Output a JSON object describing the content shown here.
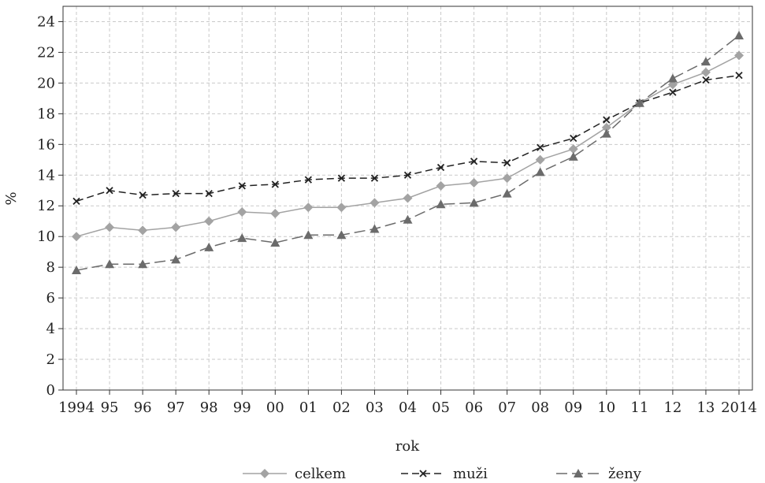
{
  "chart_data": {
    "type": "line",
    "title": "",
    "xlabel": "rok",
    "ylabel": "%",
    "ylim": [
      0,
      25
    ],
    "yticks": [
      0,
      2,
      4,
      6,
      8,
      10,
      12,
      14,
      16,
      18,
      20,
      22,
      24
    ],
    "grid": true,
    "legend_placement": "bottom",
    "categories": [
      "1994",
      "95",
      "96",
      "97",
      "98",
      "99",
      "00",
      "01",
      "02",
      "03",
      "04",
      "05",
      "06",
      "07",
      "08",
      "09",
      "10",
      "11",
      "12",
      "13",
      "2014"
    ],
    "series": [
      {
        "name": "celkem",
        "marker": "diamond",
        "line": "solid",
        "color": "#a3a3a3",
        "values": [
          10.0,
          10.6,
          10.4,
          10.6,
          11.0,
          11.6,
          11.5,
          11.9,
          11.9,
          12.2,
          12.5,
          13.3,
          13.5,
          13.8,
          15.0,
          15.7,
          17.1,
          18.7,
          19.9,
          20.7,
          21.8
        ]
      },
      {
        "name": "muži",
        "marker": "x",
        "line": "dash",
        "color": "#222222",
        "values": [
          12.3,
          13.0,
          12.7,
          12.8,
          12.8,
          13.3,
          13.4,
          13.7,
          13.8,
          13.8,
          14.0,
          14.5,
          14.9,
          14.8,
          15.8,
          16.4,
          17.6,
          18.7,
          19.4,
          20.2,
          20.5
        ]
      },
      {
        "name": "ženy",
        "marker": "triangle",
        "line": "longdash",
        "color": "#6b6b6b",
        "values": [
          7.8,
          8.2,
          8.2,
          8.5,
          9.3,
          9.9,
          9.6,
          10.1,
          10.1,
          10.5,
          11.1,
          12.1,
          12.2,
          12.8,
          14.2,
          15.2,
          16.7,
          18.7,
          20.3,
          21.4,
          23.1
        ]
      }
    ]
  }
}
